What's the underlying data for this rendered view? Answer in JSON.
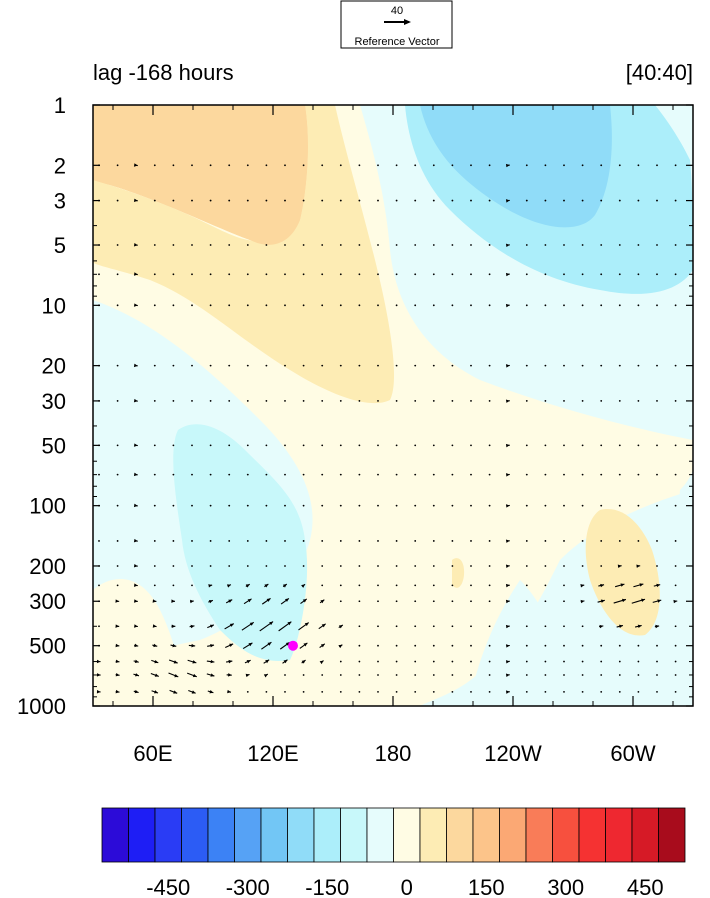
{
  "chart_data": {
    "type": "heatmap",
    "title_left": "lag -168 hours",
    "title_right": "[40:40]",
    "reference_vector": {
      "magnitude": "40",
      "label": "Reference Vector"
    },
    "x_axis": {
      "range_deg_east": [
        30,
        330
      ],
      "ticks": [
        {
          "lon": 60,
          "label": "60E"
        },
        {
          "lon": 120,
          "label": "120E"
        },
        {
          "lon": 180,
          "label": "180"
        },
        {
          "lon": 240,
          "label": "120W"
        },
        {
          "lon": 300,
          "label": "60W"
        }
      ]
    },
    "y_axis": {
      "scale": "log",
      "reversed": true,
      "range": [
        1,
        1000
      ],
      "ticks": [
        1,
        2,
        3,
        5,
        10,
        20,
        30,
        50,
        100,
        200,
        300,
        500,
        1000
      ],
      "tick_labels": [
        "1",
        "2",
        "3",
        "5",
        "10",
        "20",
        "30",
        "50",
        "100",
        "200",
        "300",
        "500",
        "1000"
      ]
    },
    "colorbar": {
      "levels": [
        -550,
        -500,
        -450,
        -400,
        -350,
        -300,
        -250,
        -200,
        -150,
        -100,
        -50,
        0,
        50,
        100,
        150,
        200,
        250,
        300,
        350,
        400,
        450,
        500,
        550
      ],
      "labels": [
        "-450",
        "-300",
        "-150",
        "0",
        "150",
        "300",
        "450"
      ],
      "label_values": [
        -450,
        -300,
        -150,
        0,
        150,
        300,
        450
      ],
      "colors": [
        "#2c0bd8",
        "#1e1ef5",
        "#2a3cf5",
        "#2c5cf5",
        "#3c82f5",
        "#56a2f5",
        "#72c6f5",
        "#90dcf8",
        "#aceefa",
        "#c8f8fa",
        "#e6fcfc",
        "#fffce4",
        "#fdecb4",
        "#fcd89e",
        "#fcc48a",
        "#fba874",
        "#f97c58",
        "#f7503e",
        "#f53232",
        "#ee2830",
        "#d61a26",
        "#a80c1c"
      ]
    },
    "contour_regions": [
      {
        "name": "neg-150 upper right",
        "fill_value": -175
      },
      {
        "name": "neg-150 lower left",
        "fill_value": -150
      },
      {
        "name": "neg-50 zone",
        "fill_value": -75
      },
      {
        "name": "pos-50 zone",
        "fill_value": 25
      },
      {
        "name": "pos-100 zone",
        "fill_value": 75
      },
      {
        "name": "pos-150 zone",
        "fill_value": 125
      }
    ],
    "marker": {
      "lon": 130,
      "pressure": 500,
      "color": "#ff00ff"
    },
    "vectors_note": "wind vectors overlaid; largest near 60E-140E at 200-1000 hPa and near 60W at 200-300 hPa"
  }
}
